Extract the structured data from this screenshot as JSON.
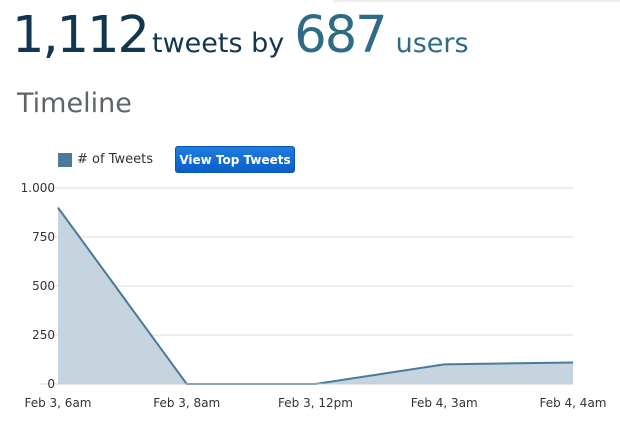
{
  "header": {
    "tweets_count": "1,112",
    "tweets_word": "tweets by",
    "users_count": "687",
    "users_word": "users"
  },
  "section_title": "Timeline",
  "legend": {
    "label": "# of Tweets",
    "color": "#4a7a99"
  },
  "button": {
    "label": "View Top Tweets"
  },
  "chart_data": {
    "type": "area",
    "categories": [
      "Feb 3, 6am",
      "Feb 3, 8am",
      "Feb 3, 12pm",
      "Feb 4, 3am",
      "Feb 4, 4am"
    ],
    "series": [
      {
        "name": "# of Tweets",
        "values": [
          900,
          0,
          0,
          100,
          110
        ]
      }
    ],
    "y_ticks": [
      0,
      250,
      500,
      750,
      1000
    ],
    "y_tick_labels": [
      "0",
      "250",
      "500",
      "750",
      "1.000"
    ],
    "ylim": [
      0,
      1000
    ],
    "grid": true,
    "legend_position": "top-left",
    "line_color": "#4a7a99",
    "fill_color": "#c5d4de"
  }
}
